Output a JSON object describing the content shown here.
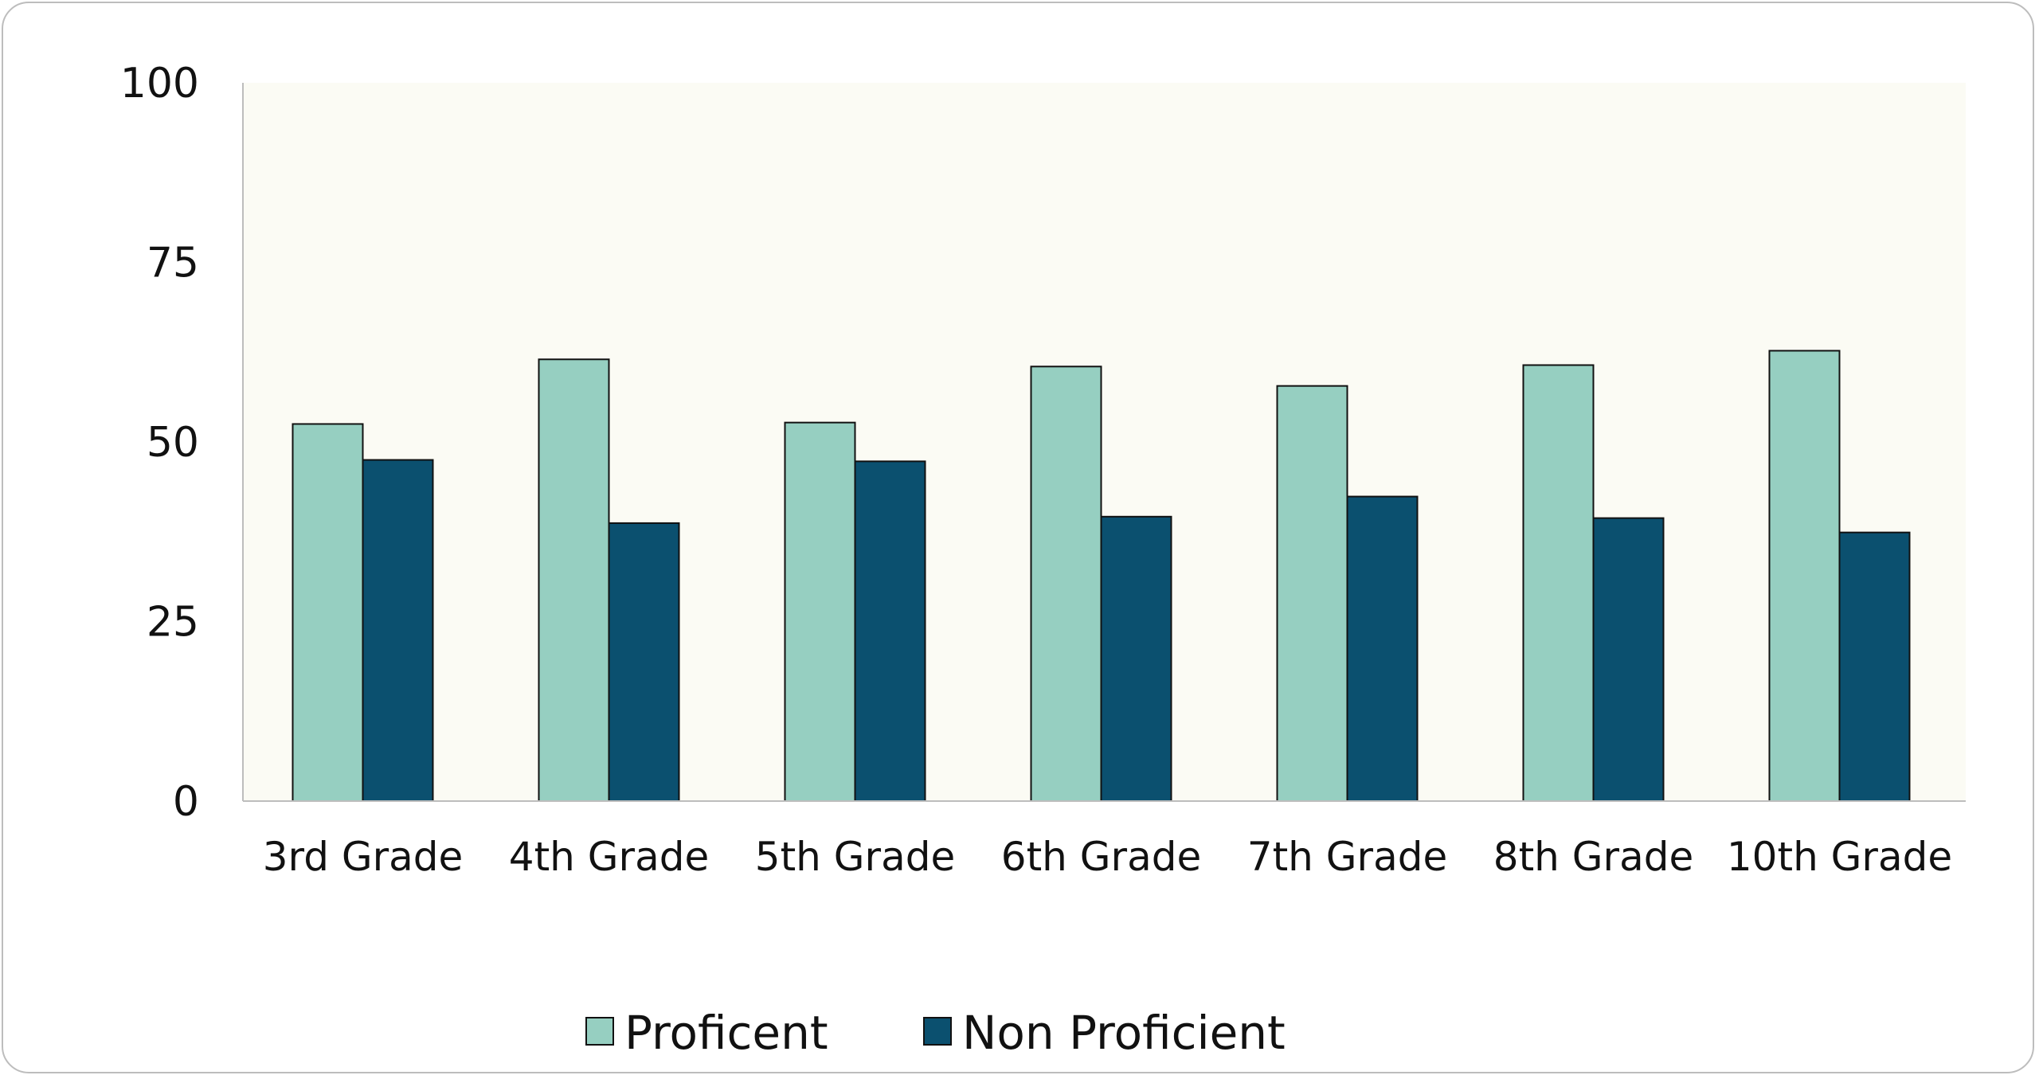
{
  "chart_data": {
    "type": "bar",
    "categories": [
      "3rd Grade",
      "4th Grade",
      "5th Grade",
      "6th Grade",
      "7th Grade",
      "8th Grade",
      "10th Grade"
    ],
    "series": [
      {
        "name": "Proficent",
        "values": [
          52.5,
          61.5,
          52.7,
          60.5,
          57.8,
          60.7,
          62.7
        ],
        "color": "#96cfc1"
      },
      {
        "name": "Non Proficient",
        "values": [
          47.5,
          38.7,
          47.3,
          39.6,
          42.4,
          39.4,
          37.4
        ],
        "color": "#0b506f"
      }
    ],
    "title": "",
    "xlabel": "",
    "ylabel": "",
    "ylim": [
      0,
      100
    ],
    "yticks": [
      "0",
      "25",
      "50",
      "75",
      "100"
    ],
    "grid": false,
    "plot_background": "#fbfbf4",
    "legend_position": "bottom"
  }
}
